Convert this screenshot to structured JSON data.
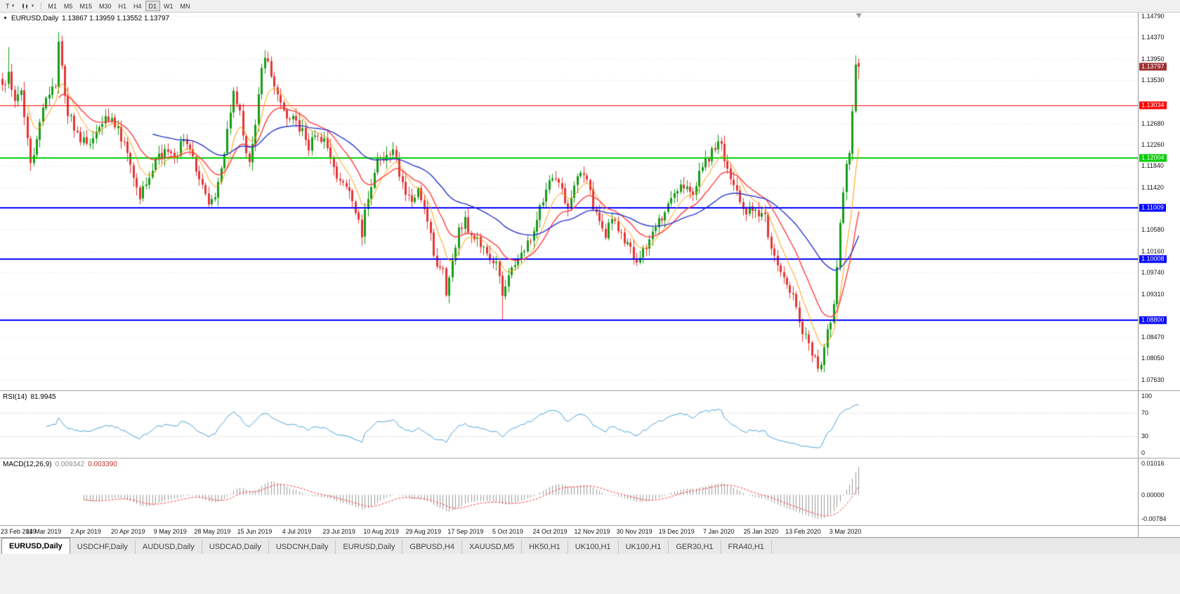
{
  "toolbar": {
    "tool_button": "T",
    "timeframes": [
      "M1",
      "M5",
      "M15",
      "M30",
      "H1",
      "H4",
      "D1",
      "W1",
      "MN"
    ],
    "active_timeframe": "D1"
  },
  "main_chart": {
    "collapse_marker": "▼",
    "title": "EURUSD,Daily",
    "ohlc": "1.13867 1.13959 1.13552 1.13797",
    "axis_ticks": [
      "1.14790",
      "1.14370",
      "1.13950",
      "1.13530",
      "1.12680",
      "1.12260",
      "1.11840",
      "1.11420",
      "1.10580",
      "1.10160",
      "1.09740",
      "1.09310",
      "1.08470",
      "1.08050",
      "1.07630"
    ],
    "price_badges": [
      {
        "label": "1.13797",
        "price": 1.13797,
        "bg": "#9c2f2f",
        "fg": "#ffffff",
        "role": "current-price"
      },
      {
        "label": "1.13034",
        "price": 1.13034,
        "bg": "#ff0000",
        "fg": "#ffffff",
        "role": "resistance-level"
      },
      {
        "label": "1.12004",
        "price": 1.12004,
        "bg": "#00cc00",
        "fg": "#ffffff",
        "role": "support-level"
      },
      {
        "label": "1.11009",
        "price": 1.11009,
        "bg": "#0000ff",
        "fg": "#ffffff",
        "role": "support-level"
      },
      {
        "label": "1.10008",
        "price": 1.10008,
        "bg": "#0000ff",
        "fg": "#ffffff",
        "role": "support-level"
      },
      {
        "label": "1.08800",
        "price": 1.088,
        "bg": "#0000ff",
        "fg": "#ffffff",
        "role": "support-level"
      }
    ]
  },
  "rsi_panel": {
    "label": "RSI(14)",
    "value": "81.9945",
    "axis_ticks": [
      100,
      70,
      30,
      0
    ],
    "level_lines": [
      70,
      30
    ]
  },
  "macd_panel": {
    "label": "MACD(12,26,9)",
    "value_main": "0.009342",
    "value_signal": "0.003390",
    "axis_ticks": [
      "0.01016",
      "0.00000",
      "-0.00784"
    ]
  },
  "date_axis": [
    "23 Feb 2019",
    "14 Mar 2019",
    "2 Apr 2019",
    "20 Apr 2019",
    "9 May 2019",
    "28 May 2019",
    "15 Jun 2019",
    "4 Jul 2019",
    "23 Jul 2019",
    "10 Aug 2019",
    "29 Aug 2019",
    "17 Sep 2019",
    "5 Oct 2019",
    "24 Oct 2019",
    "12 Nov 2019",
    "30 Nov 2019",
    "19 Dec 2019",
    "7 Jan 2020",
    "25 Jan 2020",
    "13 Feb 2020",
    "3 Mar 2020"
  ],
  "tabs": [
    "EURUSD,Daily",
    "USDCHF,Daily",
    "AUDUSD,Daily",
    "USDCAD,Daily",
    "USDCNH,Daily",
    "EURUSD,Daily",
    "GBPUSD,H4",
    "XAUUSD,M5",
    "HK50,H1",
    "UK100,H1",
    "UK100,H1",
    "GER30,H1",
    "FRA40,H1"
  ],
  "active_tab_index": 0,
  "chart_data": {
    "type": "candlestick",
    "symbol": "EURUSD",
    "timeframe": "Daily",
    "bars_total": 275,
    "price_range": [
      1.0742,
      1.1486
    ],
    "bar_step": 4.45,
    "noise": 0.002,
    "horizontal_lines": [
      {
        "price": 1.13034,
        "color": "#ff0000",
        "width": 1
      },
      {
        "price": 1.12004,
        "color": "#00cc00",
        "width": 2
      },
      {
        "price": 1.11009,
        "color": "#0000ff",
        "width": 2
      },
      {
        "price": 1.10008,
        "color": "#0000ff",
        "width": 2
      },
      {
        "price": 1.088,
        "color": "#0000ff",
        "width": 2
      }
    ],
    "moving_averages": [
      {
        "period": 8,
        "color": "#ff9b00",
        "width": 1
      },
      {
        "period": 18,
        "color": "#ff3b3b",
        "width": 1.4
      },
      {
        "period": 48,
        "color": "#2633cc",
        "width": 1.4
      }
    ],
    "colors": {
      "up": "#169b16",
      "down": "#e43535",
      "rsi": "#4aa0d5",
      "macd_hist": "#9a9a9a",
      "macd_signal": "#ff3b3b",
      "grid": "#e3e3e3"
    },
    "rsi_period": 14,
    "macd_params": [
      12,
      26,
      9
    ],
    "close_anchors": [
      [
        0,
        1.1336
      ],
      [
        2,
        1.1372
      ],
      [
        4,
        1.131
      ],
      [
        6,
        1.1332
      ],
      [
        9,
        1.1185
      ],
      [
        11,
        1.1232
      ],
      [
        13,
        1.1302
      ],
      [
        15,
        1.1328
      ],
      [
        17,
        1.1342
      ],
      [
        18,
        1.1435
      ],
      [
        19,
        1.1372
      ],
      [
        21,
        1.1292
      ],
      [
        24,
        1.1246
      ],
      [
        27,
        1.1222
      ],
      [
        30,
        1.1256
      ],
      [
        33,
        1.1286
      ],
      [
        36,
        1.127
      ],
      [
        39,
        1.1226
      ],
      [
        42,
        1.1162
      ],
      [
        44,
        1.1122
      ],
      [
        46,
        1.1152
      ],
      [
        49,
        1.1192
      ],
      [
        52,
        1.1216
      ],
      [
        55,
        1.1202
      ],
      [
        58,
        1.1236
      ],
      [
        60,
        1.1212
      ],
      [
        63,
        1.1162
      ],
      [
        66,
        1.1116
      ],
      [
        68,
        1.1132
      ],
      [
        70,
        1.1176
      ],
      [
        72,
        1.1256
      ],
      [
        74,
        1.1336
      ],
      [
        76,
        1.1292
      ],
      [
        78,
        1.1212
      ],
      [
        79,
        1.1192
      ],
      [
        81,
        1.1272
      ],
      [
        83,
        1.1372
      ],
      [
        84,
        1.1406
      ],
      [
        86,
        1.1366
      ],
      [
        88,
        1.1332
      ],
      [
        90,
        1.1286
      ],
      [
        93,
        1.128
      ],
      [
        96,
        1.1252
      ],
      [
        98,
        1.1222
      ],
      [
        100,
        1.1252
      ],
      [
        103,
        1.1232
      ],
      [
        106,
        1.1182
      ],
      [
        108,
        1.1152
      ],
      [
        110,
        1.1146
      ],
      [
        112,
        1.1122
      ],
      [
        114,
        1.1078
      ],
      [
        115,
        1.1042
      ],
      [
        116,
        1.1092
      ],
      [
        118,
        1.1152
      ],
      [
        120,
        1.1206
      ],
      [
        123,
        1.1196
      ],
      [
        125,
        1.1216
      ],
      [
        127,
        1.1172
      ],
      [
        129,
        1.1132
      ],
      [
        131,
        1.1106
      ],
      [
        133,
        1.1146
      ],
      [
        135,
        1.1092
      ],
      [
        137,
        1.1042
      ],
      [
        139,
        1.0992
      ],
      [
        141,
        1.0972
      ],
      [
        142,
        1.0932
      ],
      [
        144,
        1.1002
      ],
      [
        146,
        1.1062
      ],
      [
        148,
        1.1074
      ],
      [
        150,
        1.1052
      ],
      [
        152,
        1.1042
      ],
      [
        154,
        1.102
      ],
      [
        156,
        1.1
      ],
      [
        158,
        1.099
      ],
      [
        160,
        1.0935
      ],
      [
        161,
        1.0945
      ],
      [
        163,
        1.0978
      ],
      [
        165,
        1.0998
      ],
      [
        167,
        1.1022
      ],
      [
        169,
        1.1042
      ],
      [
        171,
        1.1072
      ],
      [
        173,
        1.1122
      ],
      [
        175,
        1.1152
      ],
      [
        177,
        1.1162
      ],
      [
        179,
        1.1132
      ],
      [
        181,
        1.1106
      ],
      [
        183,
        1.1142
      ],
      [
        185,
        1.1166
      ],
      [
        187,
        1.1152
      ],
      [
        189,
        1.1102
      ],
      [
        191,
        1.1072
      ],
      [
        193,
        1.1052
      ],
      [
        195,
        1.1082
      ],
      [
        197,
        1.1062
      ],
      [
        199,
        1.1032
      ],
      [
        201,
        1.1017
      ],
      [
        203,
        1.0992
      ],
      [
        205,
        1.1012
      ],
      [
        207,
        1.1042
      ],
      [
        209,
        1.1062
      ],
      [
        211,
        1.1082
      ],
      [
        213,
        1.1112
      ],
      [
        215,
        1.1132
      ],
      [
        217,
        1.1156
      ],
      [
        219,
        1.1142
      ],
      [
        221,
        1.1122
      ],
      [
        223,
        1.1172
      ],
      [
        225,
        1.1192
      ],
      [
        227,
        1.1212
      ],
      [
        229,
        1.1232
      ],
      [
        230,
        1.1222
      ],
      [
        232,
        1.1172
      ],
      [
        234,
        1.1142
      ],
      [
        236,
        1.1112
      ],
      [
        238,
        1.1092
      ],
      [
        240,
        1.1096
      ],
      [
        242,
        1.1086
      ],
      [
        244,
        1.1082
      ],
      [
        246,
        1.1022
      ],
      [
        248,
        1.0992
      ],
      [
        250,
        1.0962
      ],
      [
        252,
        1.0942
      ],
      [
        254,
        1.0902
      ],
      [
        256,
        1.0862
      ],
      [
        258,
        1.0832
      ],
      [
        260,
        1.0802
      ],
      [
        261,
        1.0786
      ],
      [
        262,
        1.0796
      ],
      [
        263,
        1.0832
      ],
      [
        264,
        1.0856
      ],
      [
        265,
        1.0882
      ],
      [
        266,
        1.0922
      ],
      [
        267,
        1.0992
      ],
      [
        268,
        1.1062
      ],
      [
        269,
        1.1136
      ],
      [
        270,
        1.118
      ],
      [
        271,
        1.1212
      ],
      [
        272,
        1.129
      ],
      [
        273,
        1.139
      ],
      [
        274,
        1.13797
      ]
    ],
    "overrides": {
      "2": {
        "high": 1.1418
      },
      "18": {
        "high": 1.1448
      },
      "84": {
        "high": 1.1412
      },
      "115": {
        "low": 1.1027
      },
      "142": {
        "low": 1.0926
      },
      "160": {
        "low": 1.0879
      },
      "261": {
        "low": 1.0778
      },
      "273": {
        "high": 1.1402
      },
      "274": {
        "open": 1.13867,
        "high": 1.13959,
        "low": 1.13552,
        "close": 1.13797
      }
    }
  }
}
